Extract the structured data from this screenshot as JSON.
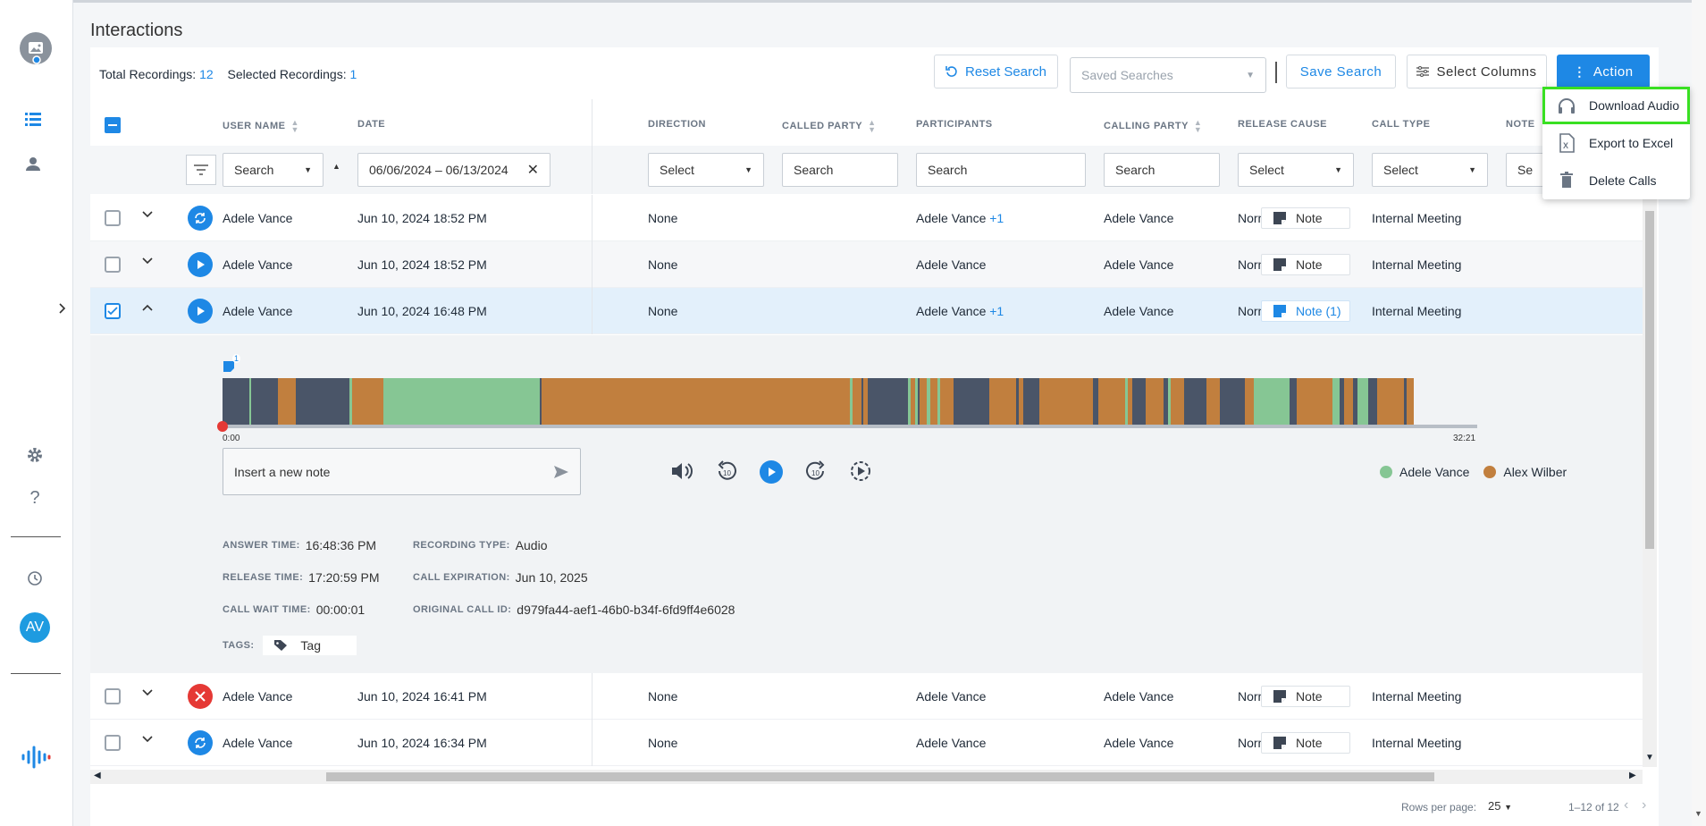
{
  "sidebar": {
    "avatar_initials": "AV"
  },
  "page_title": "Interactions",
  "stats": {
    "total_label": "Total Recordings:",
    "total_value": "12",
    "selected_label": "Selected Recordings:",
    "selected_value": "1"
  },
  "toolbar": {
    "reset_search": "Reset Search",
    "saved_searches_placeholder": "Saved Searches",
    "save_search": "Save Search",
    "select_columns": "Select Columns",
    "action": "Action"
  },
  "columns": [
    "USER NAME",
    "DATE",
    "DIRECTION",
    "CALLED PARTY",
    "PARTICIPANTS",
    "CALLING PARTY",
    "RELEASE CAUSE",
    "CALL TYPE",
    "NOTE"
  ],
  "filters": {
    "user_name": "Search",
    "date_range": "06/06/2024 – 06/13/2024",
    "direction": "Select",
    "called_party": "Search",
    "participants": "Search",
    "calling_party": "Search",
    "release_cause": "Select",
    "call_type": "Select",
    "note": "Se"
  },
  "rows": [
    {
      "status": "sync",
      "user": "Adele Vance",
      "date": "Jun 10, 2024 18:52 PM",
      "direction": "None",
      "participants": "Adele Vance",
      "participants_extra": "+1",
      "calling": "Adele Vance",
      "release": "Normal",
      "type": "Internal Meeting",
      "note": "Note"
    },
    {
      "status": "play",
      "user": "Adele Vance",
      "date": "Jun 10, 2024 18:52 PM",
      "direction": "None",
      "participants": "Adele Vance",
      "participants_extra": "",
      "calling": "Adele Vance",
      "release": "Normal",
      "type": "Internal Meeting",
      "note": "Note"
    },
    {
      "status": "play",
      "user": "Adele Vance",
      "date": "Jun 10, 2024 16:48 PM",
      "direction": "None",
      "participants": "Adele Vance",
      "participants_extra": "+1",
      "calling": "Adele Vance",
      "release": "Normal",
      "type": "Internal Meeting",
      "note": "Note (1)"
    },
    {
      "status": "error",
      "user": "Adele Vance",
      "date": "Jun 10, 2024 16:41 PM",
      "direction": "None",
      "participants": "Adele Vance",
      "participants_extra": "",
      "calling": "Adele Vance",
      "release": "Normal",
      "type": "Internal Meeting",
      "note": "Note"
    },
    {
      "status": "sync",
      "user": "Adele Vance",
      "date": "Jun 10, 2024 16:34 PM",
      "direction": "None",
      "participants": "Adele Vance",
      "participants_extra": "",
      "calling": "Adele Vance",
      "release": "Normal",
      "type": "Internal Meeting",
      "note": "Note"
    }
  ],
  "player": {
    "note_badge": "1",
    "time_start": "0:00",
    "time_end": "32:21",
    "note_placeholder": "Insert a new note",
    "legend": [
      {
        "name": "Adele Vance",
        "color": "#86c694"
      },
      {
        "name": "Alex Wilber",
        "color": "#c17f3e"
      }
    ]
  },
  "details": {
    "answer_time_label": "ANSWER TIME:",
    "answer_time": "16:48:36 PM",
    "recording_type_label": "RECORDING TYPE:",
    "recording_type": "Audio",
    "release_time_label": "RELEASE TIME:",
    "release_time": "17:20:59 PM",
    "call_expiration_label": "CALL EXPIRATION:",
    "call_expiration": "Jun 10, 2025",
    "wait_time_label": "CALL WAIT TIME:",
    "wait_time": "00:00:01",
    "original_id_label": "ORIGINAL CALL ID:",
    "original_id": "d979fa44-aef1-46b0-b34f-6fd9ff4e6028",
    "tags_label": "TAGS:",
    "tag": "Tag"
  },
  "menu": {
    "download_audio": "Download Audio",
    "export_excel": "Export to Excel",
    "delete_calls": "Delete Calls"
  },
  "footer": {
    "rows_per_page_label": "Rows per page:",
    "rows_per_page": "25",
    "range": "1–12 of 12"
  },
  "colors": {
    "accent": "#1e88e5",
    "speaker_a": "#86c694",
    "speaker_b": "#c17f3e",
    "silence": "#4a5568",
    "error": "#e53935",
    "highlight": "#39e022"
  }
}
